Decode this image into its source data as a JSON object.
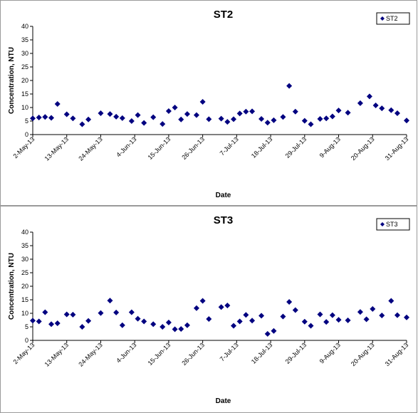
{
  "chart_data": [
    {
      "type": "scatter",
      "title": "ST2",
      "xlabel": "Date",
      "ylabel": "Concentration, NTU",
      "ylim": [
        0,
        40
      ],
      "yticks": [
        "0",
        "5",
        "10",
        "15",
        "20",
        "25",
        "30",
        "35",
        "40"
      ],
      "xlim": [
        "2013-05-02",
        "2013-08-31"
      ],
      "xticks": [
        "2-May-13",
        "13-May-13",
        "24-May-13",
        "4-Jun-13",
        "15-Jun-13",
        "26-Jun-13",
        "7-Jul-13",
        "18-Jul-13",
        "29-Jul-13",
        "9-Aug-13",
        "20-Aug-13",
        "31-Aug-13"
      ],
      "grid": false,
      "legend": "top-right",
      "marker": "diamond",
      "color": "#000080",
      "series": [
        {
          "name": "ST2",
          "points": [
            [
              "2013-05-02",
              6.0
            ],
            [
              "2013-05-04",
              6.3
            ],
            [
              "2013-05-06",
              6.5
            ],
            [
              "2013-05-08",
              6.2
            ],
            [
              "2013-05-10",
              11.3
            ],
            [
              "2013-05-13",
              7.5
            ],
            [
              "2013-05-15",
              6.0
            ],
            [
              "2013-05-18",
              3.8
            ],
            [
              "2013-05-20",
              5.6
            ],
            [
              "2013-05-24",
              7.9
            ],
            [
              "2013-05-27",
              7.6
            ],
            [
              "2013-05-29",
              6.6
            ],
            [
              "2013-05-31",
              6.1
            ],
            [
              "2013-06-03",
              5.0
            ],
            [
              "2013-06-05",
              7.2
            ],
            [
              "2013-06-07",
              4.3
            ],
            [
              "2013-06-10",
              6.4
            ],
            [
              "2013-06-13",
              3.9
            ],
            [
              "2013-06-15",
              8.7
            ],
            [
              "2013-06-17",
              10.0
            ],
            [
              "2013-06-19",
              5.6
            ],
            [
              "2013-06-21",
              7.6
            ],
            [
              "2013-06-24",
              7.2
            ],
            [
              "2013-06-26",
              12.1
            ],
            [
              "2013-06-28",
              5.7
            ],
            [
              "2013-07-02",
              5.9
            ],
            [
              "2013-07-04",
              4.7
            ],
            [
              "2013-07-06",
              5.7
            ],
            [
              "2013-07-08",
              7.8
            ],
            [
              "2013-07-10",
              8.5
            ],
            [
              "2013-07-12",
              8.6
            ],
            [
              "2013-07-15",
              5.8
            ],
            [
              "2013-07-17",
              4.4
            ],
            [
              "2013-07-19",
              5.3
            ],
            [
              "2013-07-22",
              6.5
            ],
            [
              "2013-07-24",
              18.0
            ],
            [
              "2013-07-26",
              8.5
            ],
            [
              "2013-07-29",
              5.1
            ],
            [
              "2013-07-31",
              3.8
            ],
            [
              "2013-08-03",
              5.8
            ],
            [
              "2013-08-05",
              6.0
            ],
            [
              "2013-08-07",
              6.7
            ],
            [
              "2013-08-09",
              8.9
            ],
            [
              "2013-08-12",
              8.1
            ],
            [
              "2013-08-16",
              11.6
            ],
            [
              "2013-08-19",
              14.1
            ],
            [
              "2013-08-21",
              10.8
            ],
            [
              "2013-08-23",
              9.7
            ],
            [
              "2013-08-26",
              9.0
            ],
            [
              "2013-08-28",
              7.9
            ],
            [
              "2013-08-31",
              5.2
            ]
          ]
        }
      ]
    },
    {
      "type": "scatter",
      "title": "ST3",
      "xlabel": "Date",
      "ylabel": "Concentration, NTU",
      "ylim": [
        0,
        40
      ],
      "yticks": [
        "0",
        "5",
        "10",
        "15",
        "20",
        "25",
        "30",
        "35",
        "40"
      ],
      "xlim": [
        "2013-05-02",
        "2013-08-31"
      ],
      "xticks": [
        "2-May-13",
        "13-May-13",
        "24-May-13",
        "4-Jun-13",
        "15-Jun-13",
        "26-Jun-13",
        "7-Jul-13",
        "18-Jul-13",
        "29-Jul-13",
        "9-Aug-13",
        "20-Aug-13",
        "31-Aug-13"
      ],
      "grid": false,
      "legend": "top-right",
      "marker": "diamond",
      "color": "#000080",
      "series": [
        {
          "name": "ST3",
          "points": [
            [
              "2013-05-02",
              7.3
            ],
            [
              "2013-05-04",
              7.0
            ],
            [
              "2013-05-06",
              10.4
            ],
            [
              "2013-05-08",
              6.0
            ],
            [
              "2013-05-10",
              6.3
            ],
            [
              "2013-05-13",
              9.6
            ],
            [
              "2013-05-15",
              9.5
            ],
            [
              "2013-05-18",
              5.0
            ],
            [
              "2013-05-20",
              7.2
            ],
            [
              "2013-05-24",
              10.1
            ],
            [
              "2013-05-27",
              14.7
            ],
            [
              "2013-05-29",
              10.3
            ],
            [
              "2013-05-31",
              5.6
            ],
            [
              "2013-06-03",
              10.4
            ],
            [
              "2013-06-05",
              8.0
            ],
            [
              "2013-06-07",
              7.0
            ],
            [
              "2013-06-10",
              6.0
            ],
            [
              "2013-06-13",
              5.0
            ],
            [
              "2013-06-15",
              6.6
            ],
            [
              "2013-06-17",
              4.1
            ],
            [
              "2013-06-19",
              4.2
            ],
            [
              "2013-06-21",
              5.6
            ],
            [
              "2013-06-24",
              11.9
            ],
            [
              "2013-06-26",
              14.6
            ],
            [
              "2013-06-28",
              7.9
            ],
            [
              "2013-07-02",
              12.3
            ],
            [
              "2013-07-04",
              12.9
            ],
            [
              "2013-07-06",
              5.4
            ],
            [
              "2013-07-08",
              7.0
            ],
            [
              "2013-07-10",
              9.4
            ],
            [
              "2013-07-12",
              7.3
            ],
            [
              "2013-07-15",
              9.1
            ],
            [
              "2013-07-17",
              2.4
            ],
            [
              "2013-07-19",
              3.5
            ],
            [
              "2013-07-22",
              8.8
            ],
            [
              "2013-07-24",
              14.2
            ],
            [
              "2013-07-26",
              11.2
            ],
            [
              "2013-07-29",
              6.9
            ],
            [
              "2013-07-31",
              5.4
            ],
            [
              "2013-08-03",
              9.6
            ],
            [
              "2013-08-05",
              6.8
            ],
            [
              "2013-08-07",
              9.3
            ],
            [
              "2013-08-09",
              7.6
            ],
            [
              "2013-08-12",
              7.4
            ],
            [
              "2013-08-16",
              10.5
            ],
            [
              "2013-08-18",
              7.8
            ],
            [
              "2013-08-20",
              11.6
            ],
            [
              "2013-08-23",
              9.2
            ],
            [
              "2013-08-26",
              14.6
            ],
            [
              "2013-08-28",
              9.3
            ],
            [
              "2013-08-31",
              8.5
            ]
          ]
        }
      ]
    }
  ]
}
